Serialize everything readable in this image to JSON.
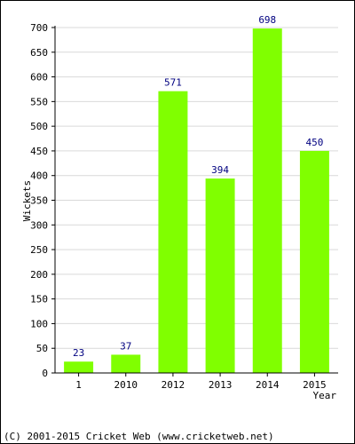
{
  "chart_data": {
    "type": "bar",
    "categories": [
      "1",
      "2010",
      "2012",
      "2013",
      "2014",
      "2015"
    ],
    "values": [
      23,
      37,
      571,
      394,
      698,
      450
    ],
    "data_labels": [
      "23",
      "37",
      "571",
      "394",
      "698",
      "450"
    ],
    "title": "",
    "xlabel": "Year",
    "ylabel": "Wickets",
    "ylim": [
      0,
      700
    ],
    "yticks": [
      0,
      50,
      100,
      150,
      200,
      250,
      300,
      350,
      400,
      450,
      500,
      550,
      600,
      650,
      700
    ],
    "grid": true,
    "bar_color": "#80ff00",
    "label_color": "#000080"
  },
  "footer": {
    "copyright": "(C) 2001-2015 Cricket Web (www.cricketweb.net)"
  }
}
